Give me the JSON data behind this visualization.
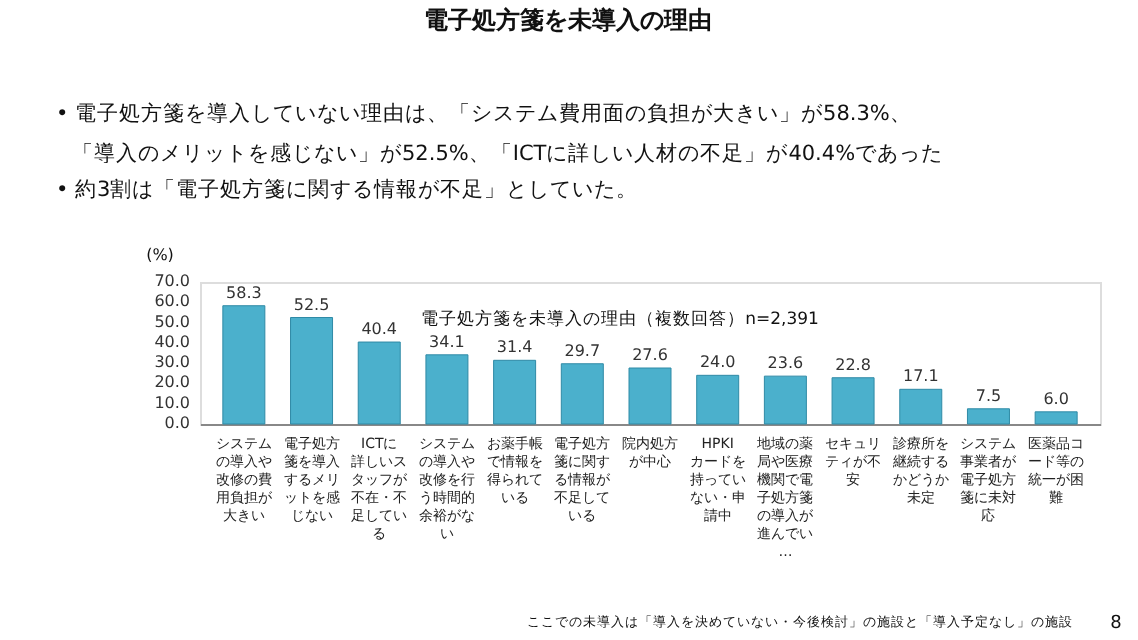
{
  "chart_data": {
    "type": "bar",
    "title": "電子処方箋を未導入の理由",
    "subtitle": "電子処方箋を未導入の理由（複数回答）n=2,391",
    "ylabel": "(%)",
    "categories": [
      "システムの導入や改修の費用負担が大きい",
      "電子処方箋を導入するメリットを感じない",
      "ICTに詳しいスタッフが不在・不足している",
      "システムの導入や改修を行う時間的余裕がない",
      "お薬手帳で情報を得られている",
      "電子処方箋に関する情報が不足している",
      "院内処方が中心",
      "HPKIカードを持っていない・申請中",
      "地域の薬局や医療機関で電子処方箋の導入が進んでい…",
      "セキュリティが不安",
      "診療所を継続するかどうか未定",
      "システム事業者が電子処方箋に未対応",
      "医薬品コード等の統一が困難"
    ],
    "values": [
      58.3,
      52.5,
      40.4,
      34.1,
      31.4,
      29.7,
      27.6,
      24.0,
      23.6,
      22.8,
      17.1,
      7.5,
      6.0
    ],
    "value_labels": [
      "58.3",
      "52.5",
      "40.4",
      "34.1",
      "31.4",
      "29.7",
      "27.6",
      "24.0",
      "23.6",
      "22.8",
      "17.1",
      "7.5",
      "6.0"
    ],
    "color": "#4bb0cc",
    "ylim": [
      0,
      70
    ],
    "yticks": [
      {
        "value": 0,
        "label": "0.0"
      },
      {
        "value": 10,
        "label": "10.0"
      },
      {
        "value": 20,
        "label": "20.0"
      },
      {
        "value": 30,
        "label": "30.0"
      },
      {
        "value": 40,
        "label": "40.0"
      },
      {
        "value": 50,
        "label": "50.0"
      },
      {
        "value": 60,
        "label": "60.0"
      },
      {
        "value": 70,
        "label": "70.0"
      }
    ],
    "grid": false,
    "annotations": [
      "• 電子処方箋を導入していない理由は、「システム費用面の負担が大きい」が58.3%、",
      "「導入のメリットを感じない」が52.5%、「ICTに詳しい人材の不足」が40.4%であった",
      "• 約3割は「電子処方箋に関する情報が不足」としていた。",
      "ここでの未導入は「導入を決めていない・今後検討」の施設と「導入予定なし」の施設",
      "8"
    ]
  }
}
